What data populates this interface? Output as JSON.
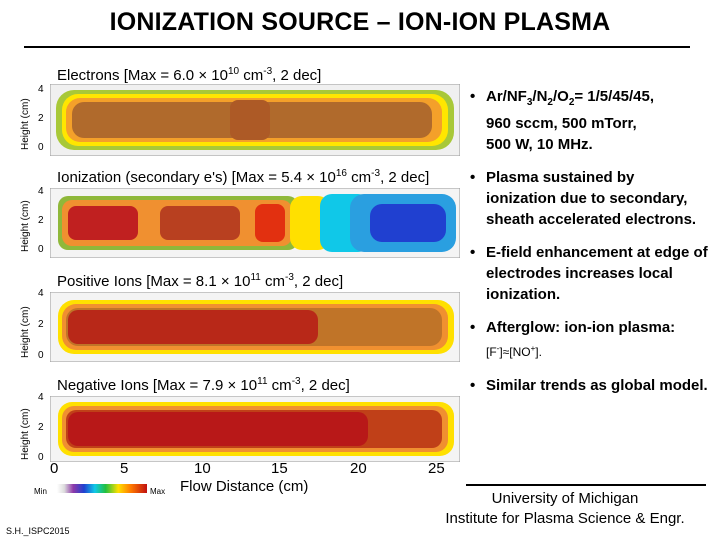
{
  "title": "IONIZATION SOURCE – ION-ION PLASMA",
  "panels": [
    {
      "title": "Electrons [Max = 6.0 × 10^10 cm^-3, 2 dec]",
      "ylabel": "Height (cm)",
      "yticks": [
        "4",
        "2",
        "0"
      ],
      "colors": "electrons"
    },
    {
      "title": "Ionization (secondary e's) [Max = 5.4 × 10^16 cm^-3, 2 dec]",
      "ylabel": "Height (cm)",
      "yticks": [
        "4",
        "2",
        "0"
      ],
      "colors": "ionization"
    },
    {
      "title": "Positive Ions [Max = 8.1 × 10^11 cm^-3, 2 dec]",
      "ylabel": "Height (cm)",
      "yticks": [
        "4",
        "2",
        "0"
      ],
      "colors": "positive"
    },
    {
      "title": "Negative Ions [Max = 7.9 × 10^11 cm^-3, 2 dec]",
      "ylabel": "Height (cm)",
      "yticks": [
        "4",
        "2",
        "0"
      ],
      "colors": "negative"
    }
  ],
  "x_axis": {
    "label": "Flow Distance (cm)",
    "ticks": [
      "0",
      "5",
      "10",
      "15",
      "20",
      "25"
    ]
  },
  "colorbar": {
    "min": "Min",
    "max": "Max"
  },
  "bullets": {
    "b1_line1": "Ar/NF3/N2/O2= 1/5/45/45,",
    "b1_line2": "960 sccm, 500 mTorr,",
    "b1_line3": "500 W, 10 MHz.",
    "b2": "Plasma sustained by ionization due to secondary, sheath accelerated electrons.",
    "b3": "E-field enhancement at edge of electrodes increases local ionization.",
    "b4_main": "Afterglow: ion-ion plasma:",
    "b4_small": "[F-]≈[NO+].",
    "b5": "Similar trends as global model."
  },
  "affiliation": {
    "line1": "University of Michigan",
    "line2": "Institute for Plasma Science & Engr."
  },
  "credit": "S.H._ISPC2015"
}
